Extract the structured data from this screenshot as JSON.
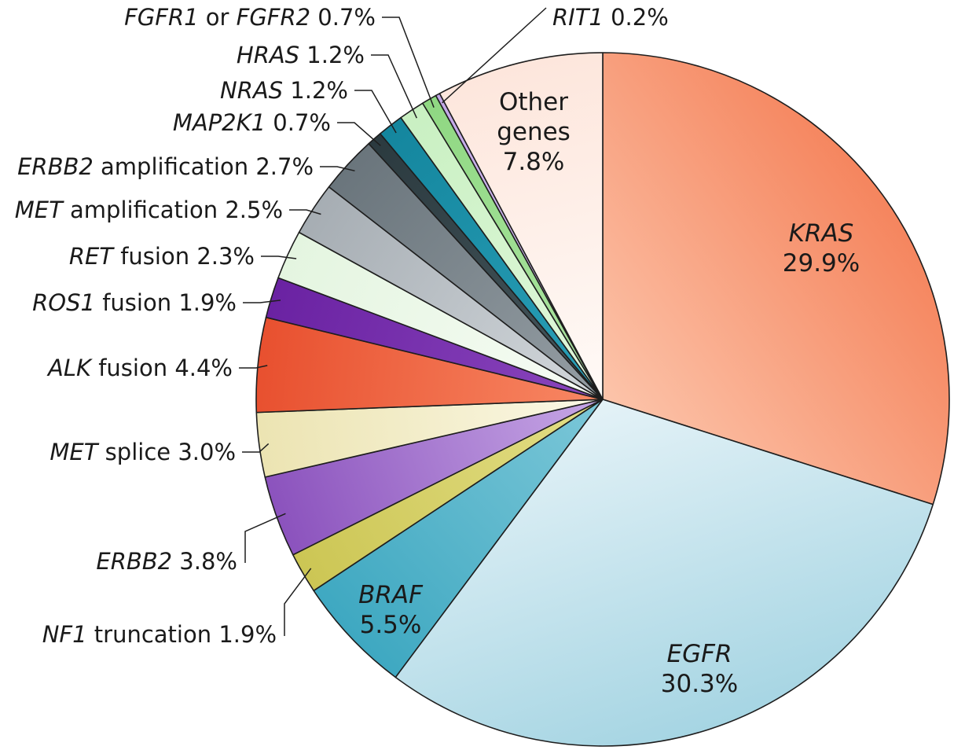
{
  "chart_data": {
    "type": "pie",
    "start_angle_deg": 0,
    "direction": "clockwise",
    "slices": [
      {
        "gene": "KRAS",
        "desc": "",
        "pct": 29.9,
        "label": "29.9%",
        "color": "#f5855e",
        "color_light": "#fcc4aa",
        "label_mode": "inside"
      },
      {
        "gene": "EGFR",
        "desc": "",
        "pct": 30.3,
        "label": "30.3%",
        "color": "#a6d5e3",
        "color_light": "#e4f2f7",
        "label_mode": "inside"
      },
      {
        "gene": "BRAF",
        "desc": "",
        "pct": 5.5,
        "label": "5.5%",
        "color": "#3ea8c1",
        "color_light": "#7cc7d8",
        "label_mode": "inside"
      },
      {
        "gene": "NF1",
        "desc": "truncation",
        "pct": 1.9,
        "label": "1.9%",
        "color": "#ccc654",
        "color_light": "#e3de86",
        "label_mode": "outside"
      },
      {
        "gene": "ERBB2",
        "desc": "",
        "pct": 3.8,
        "label": "3.8%",
        "color": "#8b52bd",
        "color_light": "#c7a8e6",
        "label_mode": "outside"
      },
      {
        "gene": "MET",
        "desc": "splice",
        "pct": 3.0,
        "label": "3.0%",
        "color": "#ece4b2",
        "color_light": "#fbf8e6",
        "label_mode": "outside"
      },
      {
        "gene": "ALK",
        "desc": "fusion",
        "pct": 4.4,
        "label": "4.4%",
        "color": "#e8502f",
        "color_light": "#f88864",
        "label_mode": "outside"
      },
      {
        "gene": "ROS1",
        "desc": "fusion",
        "pct": 1.9,
        "label": "1.9%",
        "color": "#6a22a2",
        "color_light": "#8a46bd",
        "label_mode": "outside"
      },
      {
        "gene": "RET",
        "desc": "fusion",
        "pct": 2.3,
        "label": "2.3%",
        "color": "#e4f5e0",
        "color_light": "#f7fcf5",
        "label_mode": "outside"
      },
      {
        "gene": "MET",
        "desc": "amplification",
        "pct": 2.5,
        "label": "2.5%",
        "color": "#a6adb3",
        "color_light": "#d3d8dc",
        "label_mode": "outside"
      },
      {
        "gene": "ERBB2",
        "desc": "amplification",
        "pct": 2.7,
        "label": "2.7%",
        "color": "#6a757c",
        "color_light": "#959ea4",
        "label_mode": "outside"
      },
      {
        "gene": "MAP2K1",
        "desc": "",
        "pct": 0.7,
        "label": "0.7%",
        "color": "#2b3a3f",
        "color_light": "#46575d",
        "label_mode": "outside"
      },
      {
        "gene": "NRAS",
        "desc": "",
        "pct": 1.2,
        "label": "1.2%",
        "color": "#14869e",
        "color_light": "#2aa0b8",
        "label_mode": "outside"
      },
      {
        "gene": "HRAS",
        "desc": "",
        "pct": 1.2,
        "label": "1.2%",
        "color": "#c9f0c2",
        "color_light": "#e1f8dc",
        "label_mode": "outside"
      },
      {
        "gene": "FGFR1",
        "desc": "or",
        "gene2": "FGFR2",
        "pct": 0.7,
        "label": "0.7%",
        "color": "#8fd882",
        "color_light": "#aee5a4",
        "label_mode": "outside"
      },
      {
        "gene": "RIT1",
        "desc": "",
        "pct": 0.2,
        "label": "0.2%",
        "color": "#c3a8e8",
        "color_light": "#d8c6f2",
        "label_mode": "outside"
      },
      {
        "gene": "",
        "desc": "Other genes",
        "pct": 7.8,
        "label": "7.8%",
        "color": "#fde6dc",
        "color_light": "#fffaf7",
        "label_mode": "inside"
      }
    ],
    "title": "",
    "legend": "none"
  }
}
